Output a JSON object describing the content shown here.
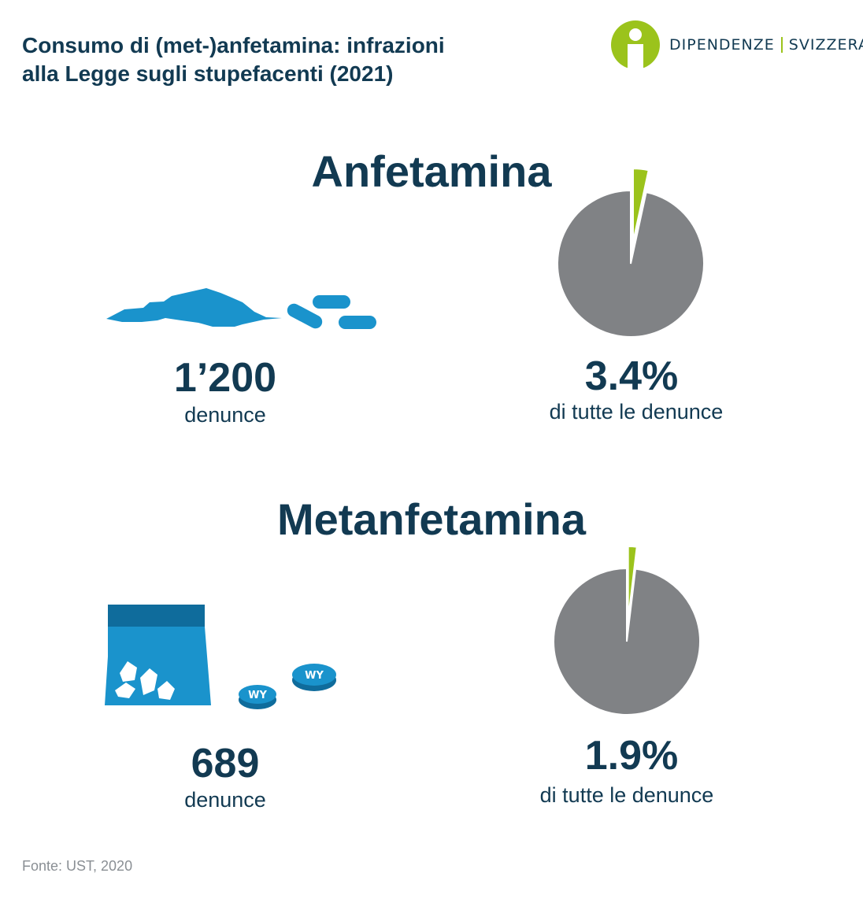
{
  "header": {
    "title_line1": "Consumo di (met-)anfetamina: infrazioni",
    "title_line2": "alla Legge sugli stupefacenti (2021)"
  },
  "logo": {
    "left": "DIPENDENZE",
    "right": "SVIZZERA",
    "icon": "info-person-icon"
  },
  "colors": {
    "navy": "#123a52",
    "blue": "#1a93cc",
    "blue_dark": "#0f6c9c",
    "lime": "#9bc31c",
    "gray": "#808285"
  },
  "sections": [
    {
      "title": "Anfetamina",
      "count": "1’200",
      "count_label": "denunce",
      "share": "3.4%",
      "share_label": "di tutte le denunce"
    },
    {
      "title": "Metanfetamina",
      "count": "689",
      "count_label": "denunce",
      "share": "1.9%",
      "share_label": "di tutte le denunce"
    }
  ],
  "pill_mark": "WY",
  "source": "Fonte: UST, 2020",
  "chart_data": [
    {
      "type": "pie",
      "title": "Anfetamina",
      "slices": [
        {
          "label": "Anfetamina",
          "value": 3.4
        },
        {
          "label": "",
          "value": 96.6
        }
      ]
    },
    {
      "type": "pie",
      "title": "Metanfetamina",
      "slices": [
        {
          "label": "Metanfetamina",
          "value": 1.9
        },
        {
          "label": "",
          "value": 98.1
        }
      ]
    }
  ]
}
